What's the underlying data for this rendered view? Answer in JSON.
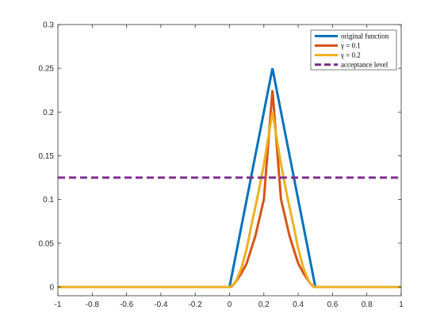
{
  "chart_data": {
    "type": "line",
    "title": "",
    "xlabel": "",
    "ylabel": "",
    "xlim": [
      -1,
      1
    ],
    "ylim": [
      -0.01,
      0.3
    ],
    "xticks": [
      -1,
      -0.8,
      -0.6,
      -0.4,
      -0.2,
      0,
      0.2,
      0.4,
      0.6,
      0.8,
      1
    ],
    "xtick_labels": [
      "-1",
      "-0.8",
      "-0.6",
      "-0.4",
      "-0.2",
      "0",
      "0.2",
      "0.4",
      "0.6",
      "0.8",
      "1"
    ],
    "yticks": [
      0,
      0.05,
      0.1,
      0.15,
      0.2,
      0.25,
      0.3
    ],
    "ytick_labels": [
      "0",
      "0.05",
      "0.1",
      "0.15",
      "0.2",
      "0.25",
      "0.3"
    ],
    "grid": false,
    "legend_position": "top-right",
    "series": [
      {
        "name": "original function",
        "color": "#0072BD",
        "dash": "solid",
        "x": [
          -1,
          0,
          0.25,
          0.5,
          1
        ],
        "y": [
          0,
          0,
          0.25,
          0,
          0
        ]
      },
      {
        "name": "γ = 0.1",
        "color": "#D95319",
        "dash": "solid",
        "x": [
          -1,
          0,
          0.01,
          0.02,
          0.04,
          0.07,
          0.1,
          0.15,
          0.2,
          0.25,
          0.3,
          0.35,
          0.4,
          0.43,
          0.46,
          0.48,
          0.49,
          0.5,
          1
        ],
        "y": [
          0,
          0,
          0.00047,
          0.0019,
          0.0069,
          0.016,
          0.027,
          0.058,
          0.1,
          0.225,
          0.1,
          0.058,
          0.027,
          0.016,
          0.0069,
          0.0019,
          0.00047,
          0,
          0
        ]
      },
      {
        "name": "γ = 0.2",
        "color": "#EDB120",
        "dash": "solid",
        "x": [
          -1,
          0,
          0.02,
          0.04,
          0.07,
          0.1,
          0.13,
          0.16,
          0.2,
          0.25,
          0.3,
          0.34,
          0.37,
          0.4,
          0.43,
          0.46,
          0.48,
          0.5,
          1
        ],
        "y": [
          0,
          0,
          0.0019,
          0.0074,
          0.022,
          0.044,
          0.073,
          0.1,
          0.14,
          0.2,
          0.14,
          0.1,
          0.073,
          0.044,
          0.022,
          0.0074,
          0.0019,
          0,
          0
        ]
      },
      {
        "name": "acceptance level",
        "color": "#7E2F8E",
        "dash": "dashed",
        "x": [
          -1,
          1
        ],
        "y": [
          0.125,
          0.125
        ]
      }
    ]
  }
}
